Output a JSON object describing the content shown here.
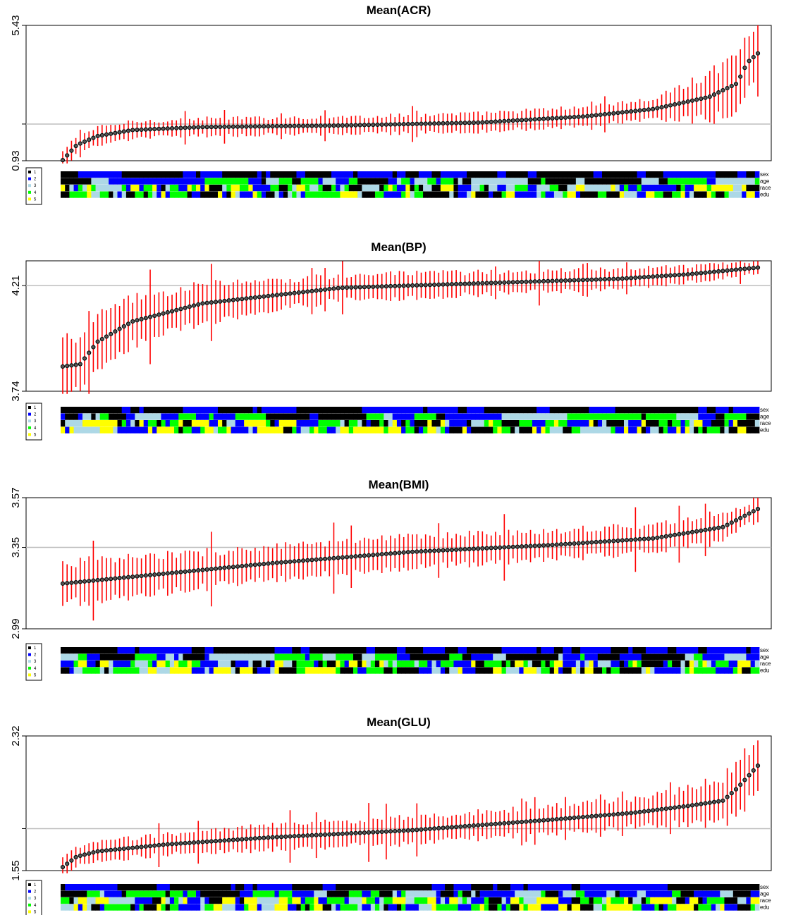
{
  "palette": {
    "1": "#000000",
    "2": "#0000ff",
    "3": "#add8e6",
    "4": "#00ff00",
    "5": "#ffff00",
    "marker": "#000000",
    "error_bar": "#ff0000",
    "reference_line": "#bebebe"
  },
  "legend": {
    "codes": [
      "1",
      "2",
      "3",
      "4",
      "5"
    ]
  },
  "covariates": [
    "sex",
    "age",
    "race",
    "edu"
  ],
  "chart_data": [
    {
      "type": "scatter",
      "title": "Mean(ACR)",
      "xlabel": "",
      "ylabel": "",
      "ylim": [
        0.93,
        5.43
      ],
      "y_ticks": [
        "0.93",
        "5.43"
      ],
      "reference_y": 2.15,
      "reference_color": "gray",
      "n_points": 160,
      "mean_profile": [
        [
          0,
          0.95
        ],
        [
          0.02,
          1.45
        ],
        [
          0.05,
          1.75
        ],
        [
          0.1,
          1.95
        ],
        [
          0.2,
          2.05
        ],
        [
          0.4,
          2.1
        ],
        [
          0.6,
          2.2
        ],
        [
          0.75,
          2.4
        ],
        [
          0.85,
          2.65
        ],
        [
          0.93,
          3.05
        ],
        [
          0.97,
          3.5
        ],
        [
          0.985,
          4.2
        ],
        [
          1,
          4.5
        ]
      ],
      "ci_halfwidth": [
        0.28,
        0.28,
        0.32,
        1.15
      ],
      "grid": false,
      "legend_position": "bottom-left"
    },
    {
      "type": "scatter",
      "title": "Mean(BP)",
      "xlabel": "",
      "ylabel": "",
      "ylim": [
        3.74,
        4.32
      ],
      "y_ticks": [
        "3.74",
        "4.21"
      ],
      "reference_y": 4.21,
      "reference_color": "gray",
      "n_points": 160,
      "mean_profile": [
        [
          0,
          3.85
        ],
        [
          0.025,
          3.86
        ],
        [
          0.05,
          3.96
        ],
        [
          0.1,
          4.05
        ],
        [
          0.2,
          4.13
        ],
        [
          0.4,
          4.2
        ],
        [
          0.6,
          4.22
        ],
        [
          0.8,
          4.24
        ],
        [
          0.9,
          4.26
        ],
        [
          1,
          4.29
        ]
      ],
      "ci_halfwidth": [
        0.12,
        0.06,
        0.04,
        0.03
      ],
      "grid": false,
      "legend_position": "bottom-left"
    },
    {
      "type": "scatter",
      "title": "Mean(BMI)",
      "xlabel": "",
      "ylabel": "",
      "ylim": [
        2.99,
        3.57
      ],
      "y_ticks": [
        "2.99",
        "3.35",
        "3.57"
      ],
      "reference_y": 3.35,
      "reference_color": "gray",
      "n_points": 160,
      "mean_profile": [
        [
          0,
          3.19
        ],
        [
          0.1,
          3.22
        ],
        [
          0.3,
          3.28
        ],
        [
          0.5,
          3.33
        ],
        [
          0.7,
          3.36
        ],
        [
          0.85,
          3.39
        ],
        [
          0.95,
          3.44
        ],
        [
          1,
          3.52
        ]
      ],
      "ci_halfwidth": [
        0.09,
        0.07,
        0.06,
        0.05
      ],
      "grid": false,
      "legend_position": "bottom-left"
    },
    {
      "type": "scatter",
      "title": "Mean(GLU)",
      "xlabel": "",
      "ylabel": "",
      "ylim": [
        1.55,
        2.32
      ],
      "y_ticks": [
        "1.55",
        "2.32"
      ],
      "reference_y": 1.79,
      "reference_color": "gray",
      "n_points": 160,
      "mean_profile": [
        [
          0,
          1.57
        ],
        [
          0.02,
          1.63
        ],
        [
          0.05,
          1.66
        ],
        [
          0.15,
          1.7
        ],
        [
          0.3,
          1.74
        ],
        [
          0.5,
          1.78
        ],
        [
          0.7,
          1.84
        ],
        [
          0.82,
          1.88
        ],
        [
          0.9,
          1.92
        ],
        [
          0.95,
          1.95
        ],
        [
          0.97,
          2.02
        ],
        [
          1,
          2.15
        ]
      ],
      "ci_halfwidth": [
        0.05,
        0.07,
        0.08,
        0.16
      ],
      "grid": false,
      "legend_position": "bottom-left"
    }
  ]
}
